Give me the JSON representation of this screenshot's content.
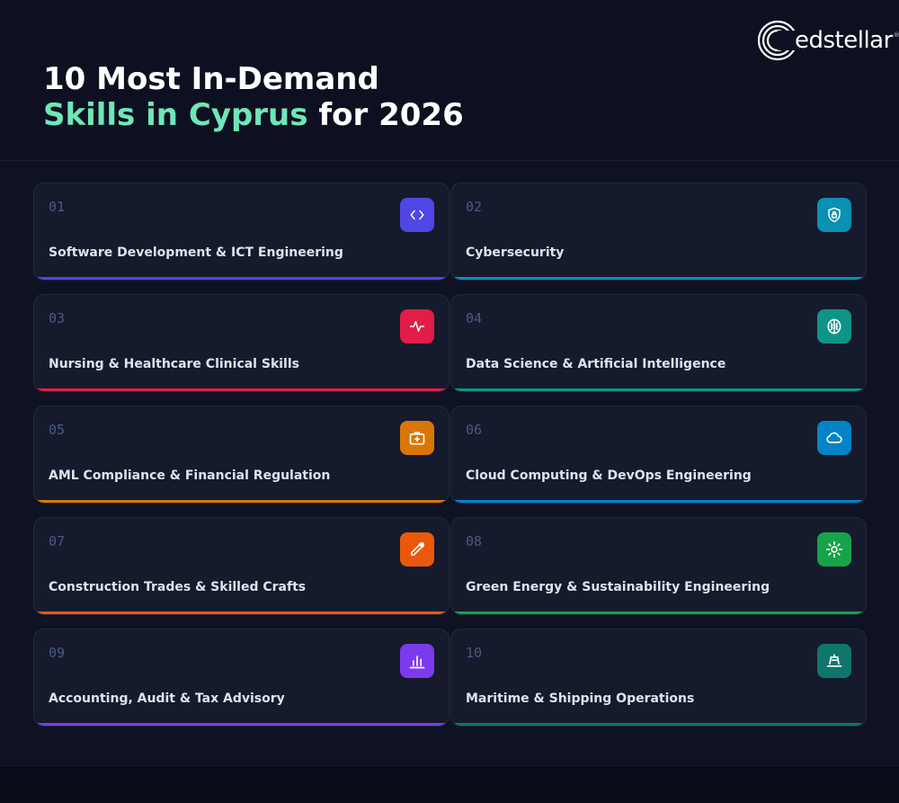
{
  "header": {
    "title_line1": "10 Most In-Demand",
    "title_accent": "Skills in Cyprus",
    "title_rest": " for 2026",
    "logo_text": "edstellar",
    "logo_reg": "®"
  },
  "skills": [
    {
      "number": "01",
      "label": "Software Development & ICT Engineering",
      "icon": "code-icon",
      "color": "#4f46e5"
    },
    {
      "number": "02",
      "label": "Cybersecurity",
      "icon": "shield-lock-icon",
      "color": "#0891b2"
    },
    {
      "number": "03",
      "label": "Nursing & Healthcare Clinical Skills",
      "icon": "heartbeat-icon",
      "color": "#e11d48"
    },
    {
      "number": "04",
      "label": "Data Science & Artificial Intelligence",
      "icon": "brain-icon",
      "color": "#0d9488"
    },
    {
      "number": "05",
      "label": "AML Compliance & Financial Regulation",
      "icon": "briefcase-icon",
      "color": "#d97706"
    },
    {
      "number": "06",
      "label": "Cloud Computing & DevOps Engineering",
      "icon": "cloud-icon",
      "color": "#0284c7"
    },
    {
      "number": "07",
      "label": "Construction Trades & Skilled Crafts",
      "icon": "wrench-icon",
      "color": "#ea580c"
    },
    {
      "number": "08",
      "label": "Green Energy & Sustainability Engineering",
      "icon": "sun-icon",
      "color": "#16a34a"
    },
    {
      "number": "09",
      "label": "Accounting, Audit & Tax Advisory",
      "icon": "bar-chart-icon",
      "color": "#7c3aed"
    },
    {
      "number": "10",
      "label": "Maritime & Shipping Operations",
      "icon": "ship-icon",
      "color": "#0f766e"
    }
  ]
}
